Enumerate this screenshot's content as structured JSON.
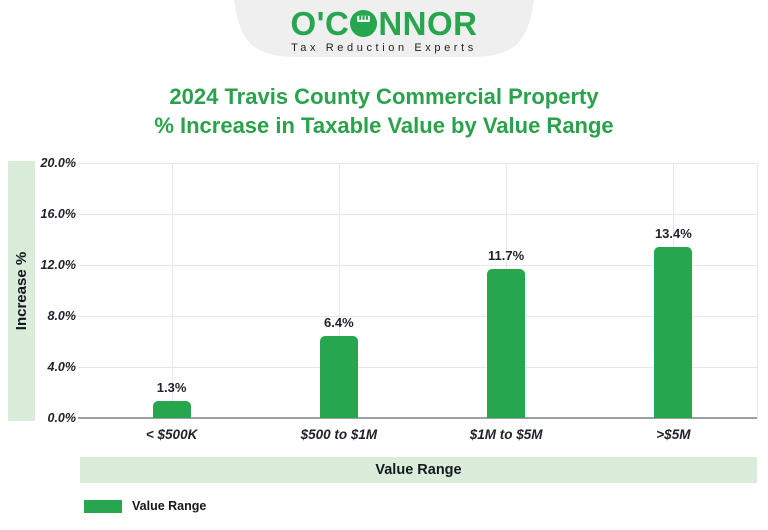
{
  "header": {
    "logo_left": "O'C",
    "logo_right": "NNOR",
    "logo_full": "O'CONNOR",
    "tagline": "Tax Reduction Experts"
  },
  "title": {
    "line1": "2024 Travis County Commercial Property",
    "line2": "% Increase in Taxable Value by Value Range"
  },
  "chart_data": {
    "type": "bar",
    "title": "2024 Travis County Commercial Property % Increase in Taxable Value by Value Range",
    "categories": [
      "< $500K",
      "$500 to $1M",
      "$1M to $5M",
      ">$5M"
    ],
    "values": [
      1.3,
      6.4,
      11.7,
      13.4
    ],
    "value_labels": [
      "1.3%",
      "6.4%",
      "11.7%",
      "13.4%"
    ],
    "series_name": "Value Range",
    "xlabel": "Value Range",
    "ylabel": "Increase %",
    "ylim": [
      0,
      20
    ],
    "ytick_step": 4,
    "ytick_labels": [
      "0.0%",
      "4.0%",
      "8.0%",
      "12.0%",
      "16.0%",
      "20.0%"
    ],
    "grid": true,
    "legend_position": "bottom-left",
    "bar_color": "#27a74d"
  },
  "legend": {
    "label": "Value Range"
  },
  "colors": {
    "brand_green": "#27a74d",
    "title_green": "#2aa24b",
    "pale_green": "#d9edda",
    "badge_gray": "#efefef",
    "grid_line": "#e7e7e7",
    "zero_line": "#9aa0a6",
    "text_dark": "#1e222a"
  }
}
